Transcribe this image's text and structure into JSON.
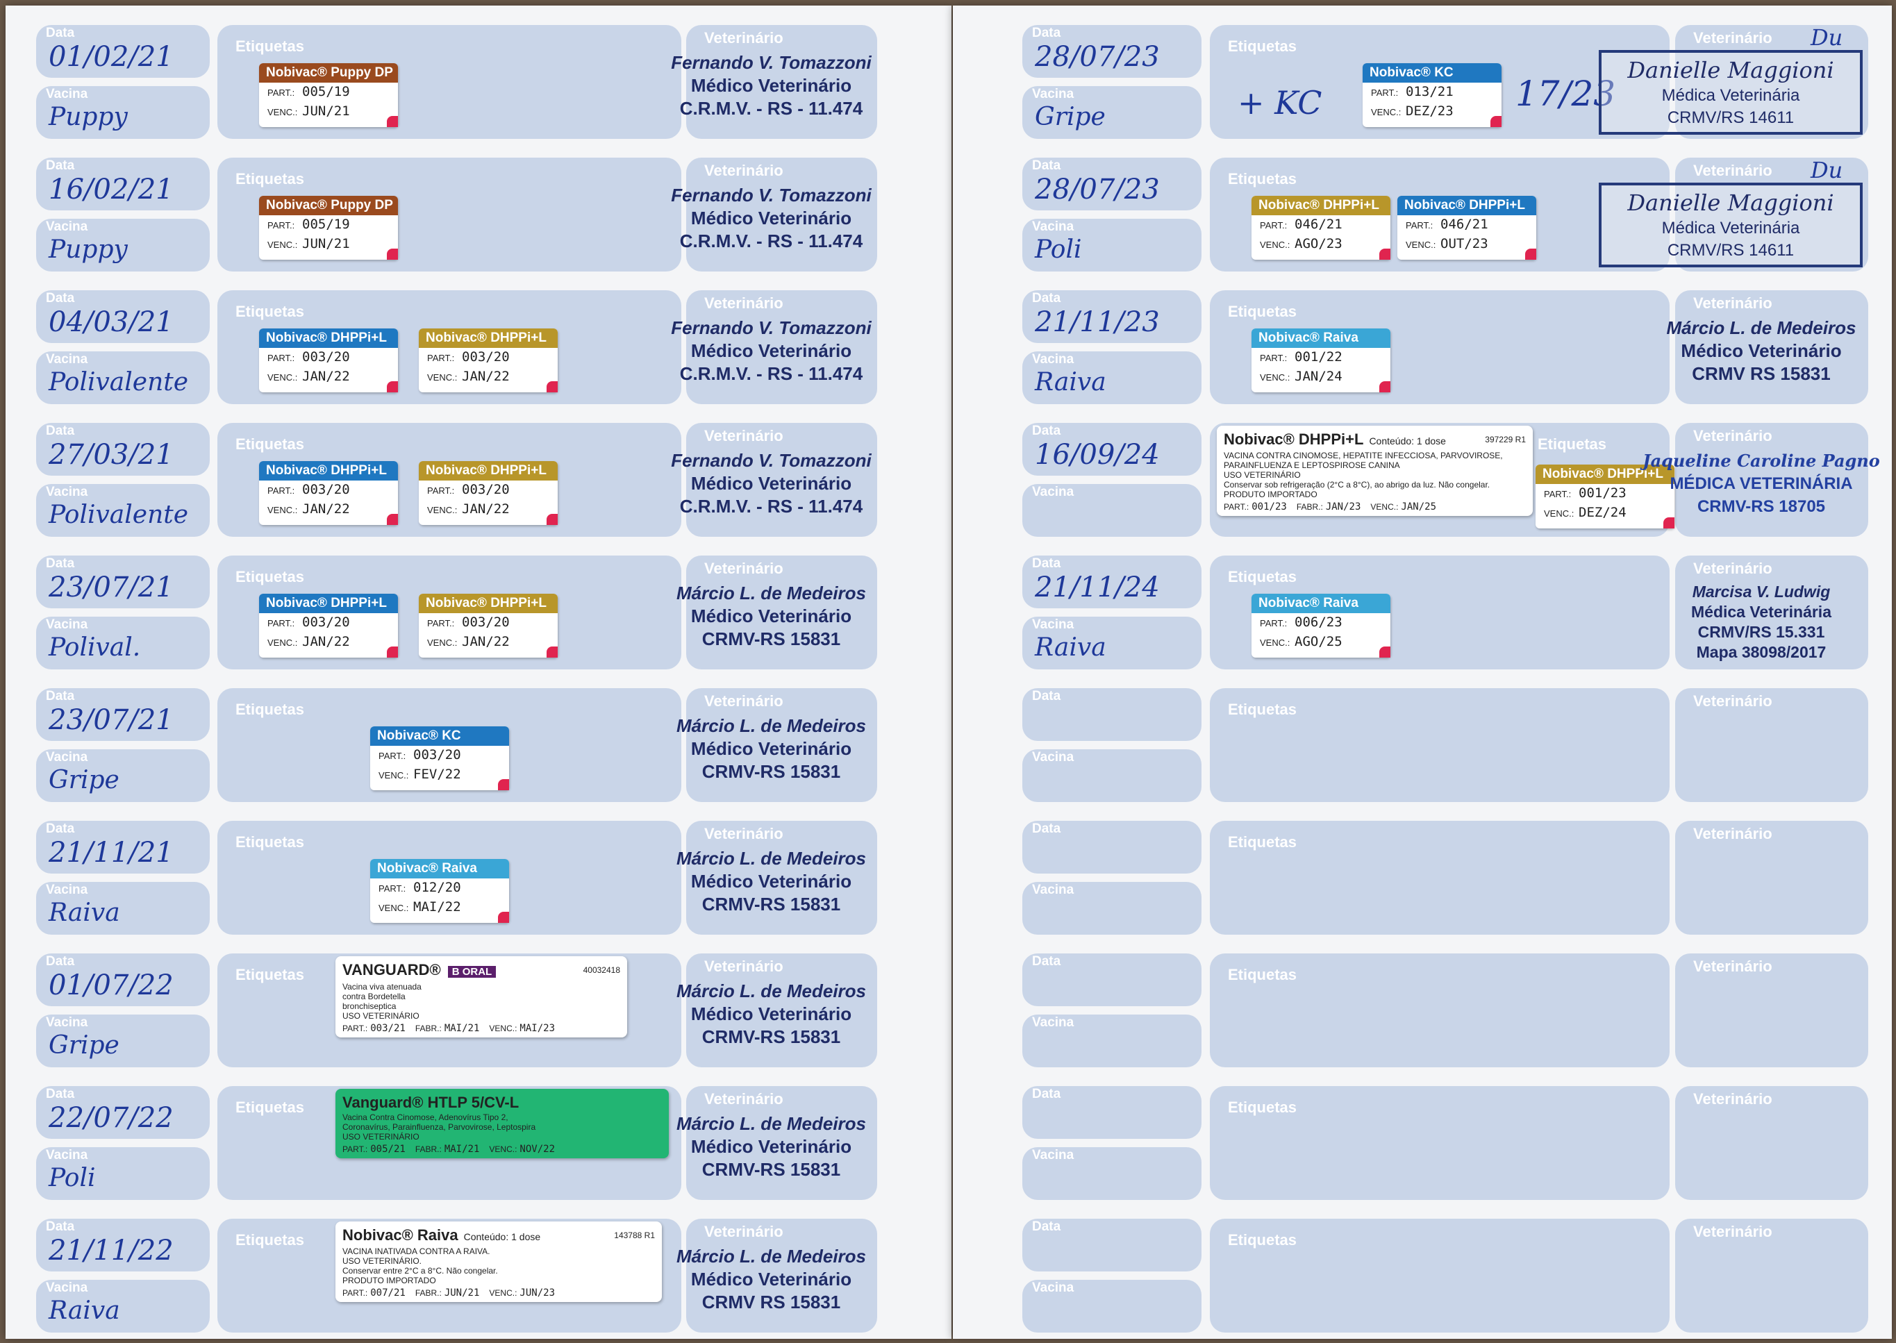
{
  "labels": {
    "date": "Data",
    "vaccine": "Vacina",
    "labels": "Etiquetas",
    "vet": "Veterinário"
  },
  "colors": {
    "box": "#c9d5e8",
    "ink": "#1e3899",
    "puppy": "#9a4a1e",
    "dhppi_blue": "#1f78c1",
    "dhppi_gold": "#b8962a",
    "kc": "#1f78c1",
    "raiva": "#3aa6d6",
    "vanguard_green": "#22b573",
    "sticker_tip": "#e0244f"
  },
  "sticker_fields": {
    "part": "PART.:",
    "venc": "VENC.:",
    "fabr": "FABR.:"
  },
  "left_page": [
    {
      "date": "01/02/21",
      "vaccine": "Puppy",
      "stickers": [
        {
          "product": "Nobivac® Puppy DP",
          "color": "puppy",
          "part": "005/19",
          "venc": "JUN/21"
        }
      ],
      "vet": [
        "Fernando V. Tomazzoni",
        "Médico Veterinário",
        "C.R.M.V. - RS - 11.474"
      ]
    },
    {
      "date": "16/02/21",
      "vaccine": "Puppy",
      "stickers": [
        {
          "product": "Nobivac® Puppy DP",
          "color": "puppy",
          "part": "005/19",
          "venc": "JUN/21"
        }
      ],
      "vet": [
        "Fernando V. Tomazzoni",
        "Médico Veterinário",
        "C.R.M.V. - RS - 11.474"
      ]
    },
    {
      "date": "04/03/21",
      "vaccine": "Polivalente",
      "stickers": [
        {
          "product": "Nobivac® DHPPi+L",
          "color": "dhppi_blue",
          "part": "003/20",
          "venc": "JAN/22"
        },
        {
          "product": "Nobivac® DHPPi+L",
          "color": "dhppi_gold",
          "part": "003/20",
          "venc": "JAN/22"
        }
      ],
      "vet": [
        "Fernando V. Tomazzoni",
        "Médico Veterinário",
        "C.R.M.V. - RS - 11.474"
      ]
    },
    {
      "date": "27/03/21",
      "vaccine": "Polivalente",
      "stickers": [
        {
          "product": "Nobivac® DHPPi+L",
          "color": "dhppi_blue",
          "part": "003/20",
          "venc": "JAN/22"
        },
        {
          "product": "Nobivac® DHPPi+L",
          "color": "dhppi_gold",
          "part": "003/20",
          "venc": "JAN/22"
        }
      ],
      "vet": [
        "Fernando V. Tomazzoni",
        "Médico Veterinário",
        "C.R.M.V. - RS - 11.474"
      ]
    },
    {
      "date": "23/07/21",
      "vaccine": "Polival.",
      "stickers": [
        {
          "product": "Nobivac® DHPPi+L",
          "color": "dhppi_blue",
          "part": "003/20",
          "venc": "JAN/22"
        },
        {
          "product": "Nobivac® DHPPi+L",
          "color": "dhppi_gold",
          "part": "003/20",
          "venc": "JAN/22"
        }
      ],
      "vet": [
        "Márcio L. de Medeiros",
        "Médico Veterinário",
        "CRMV-RS 15831"
      ]
    },
    {
      "date": "23/07/21",
      "vaccine": "Gripe",
      "stickers": [
        {
          "product": "Nobivac® KC",
          "color": "kc",
          "part": "003/20",
          "venc": "FEV/22"
        }
      ],
      "vet": [
        "Márcio L. de Medeiros",
        "Médico Veterinário",
        "CRMV-RS 15831"
      ]
    },
    {
      "date": "21/11/21",
      "vaccine": "Raiva",
      "stickers": [
        {
          "product": "Nobivac® Raiva",
          "color": "raiva",
          "part": "012/20",
          "venc": "MAI/22"
        }
      ],
      "vet": [
        "Márcio L. de Medeiros",
        "Médico Veterinário",
        "CRMV-RS 15831"
      ]
    },
    {
      "date": "01/07/22",
      "vaccine": "Gripe",
      "big": {
        "title": "VANGUARD®",
        "badge": "B ORAL",
        "lines": [
          "Vacina viva atenuada",
          "contra Bordetella",
          "bronchiseptica",
          "USO VETERINÁRIO"
        ],
        "part": "003/21",
        "fabr": "MAI/21",
        "venc": "MAI/23",
        "code": "40032418"
      },
      "vet": [
        "Márcio L. de Medeiros",
        "Médico Veterinário",
        "CRMV-RS 15831"
      ]
    },
    {
      "date": "22/07/22",
      "vaccine": "Poli",
      "big": {
        "title": "Vanguard® HTLP 5/CV-L",
        "lines": [
          "Vacina Contra Cinomose, Adenovírus Tipo 2,",
          "Coronavírus, Parainfluenza, Parvovirose, Leptospira",
          "USO VETERINÁRIO"
        ],
        "part": "005/21",
        "fabr": "MAI/21",
        "venc": "NOV/22"
      },
      "vet": [
        "Márcio L. de Medeiros",
        "Médico Veterinário",
        "CRMV-RS 15831"
      ]
    },
    {
      "date": "21/11/22",
      "vaccine": "Raiva",
      "big": {
        "title": "Nobivac® Raiva",
        "dose": "Conteúdo: 1 dose",
        "lines": [
          "VACINA INATIVADA CONTRA A RAIVA.",
          "USO VETERINÁRIO.",
          "Conservar entre 2°C a 8°C. Não congelar.",
          "PRODUTO IMPORTADO"
        ],
        "code": "143788 R1",
        "part": "007/21",
        "fabr": "JUN/21",
        "venc": "JUN/23"
      },
      "vet": [
        "Márcio L. de Medeiros",
        "Médico Veterinário",
        "CRMV RS 15831"
      ]
    }
  ],
  "right_page": [
    {
      "date": "28/07/23",
      "vaccine": "Gripe",
      "note": "+ KC",
      "note2": "17/23",
      "stickers": [
        {
          "product": "Nobivac® KC",
          "color": "kc",
          "part": "013/21",
          "venc": "DEZ/23"
        }
      ],
      "stamp": [
        "Danielle Maggioni",
        "Médica Veterinária",
        "CRMV/RS 14611"
      ],
      "initials": "Du"
    },
    {
      "date": "28/07/23",
      "vaccine": "Poli",
      "stickers": [
        {
          "product": "Nobivac® DHPPi+L",
          "color": "dhppi_gold",
          "part": "046/21",
          "venc": "AGO/23"
        },
        {
          "product": "Nobivac® DHPPi+L",
          "color": "dhppi_blue",
          "part": "046/21",
          "venc": "OUT/23"
        }
      ],
      "stamp": [
        "Danielle Maggioni",
        "Médica Veterinária",
        "CRMV/RS 14611"
      ],
      "initials": "Du"
    },
    {
      "date": "21/11/23",
      "vaccine": "Raiva",
      "stickers": [
        {
          "product": "Nobivac® Raiva",
          "color": "raiva",
          "part": "001/22",
          "venc": "JAN/24"
        }
      ],
      "vet": [
        "Márcio L. de Medeiros",
        "Médico Veterinário",
        "CRMV RS 15831"
      ]
    },
    {
      "date": "16/09/24",
      "vaccine": "",
      "big": {
        "title": "Nobivac® DHPPi+L",
        "dose": "Conteúdo: 1 dose",
        "lines": [
          "VACINA CONTRA CINOMOSE, HEPATITE INFECCIOSA, PARVOVIROSE,",
          "PARAINFLUENZA E LEPTOSPIROSE CANINA",
          "USO VETERINÁRIO",
          "Conservar sob refrigeração (2°C a 8°C), ao abrigo da luz. Não congelar.",
          "PRODUTO IMPORTADO"
        ],
        "code": "397229 R1",
        "part": "001/23",
        "fabr": "JAN/23",
        "venc": "JAN/25"
      },
      "stickers": [
        {
          "product": "Nobivac® DHPPi+L",
          "color": "dhppi_gold",
          "part": "001/23",
          "venc": "DEZ/24"
        }
      ],
      "vet_rot": [
        "Jaqueline Caroline Pagno",
        "MÉDICA VETERINÁRIA",
        "CRMV-RS 18705"
      ]
    },
    {
      "date": "21/11/24",
      "vaccine": "Raiva",
      "stickers": [
        {
          "product": "Nobivac® Raiva",
          "color": "raiva",
          "part": "006/23",
          "venc": "AGO/25"
        }
      ],
      "vet": [
        "Marcisa V. Ludwig",
        "Médica Veterinária",
        "CRMV/RS 15.331",
        "Mapa 38098/2017"
      ]
    },
    {},
    {},
    {},
    {},
    {}
  ]
}
